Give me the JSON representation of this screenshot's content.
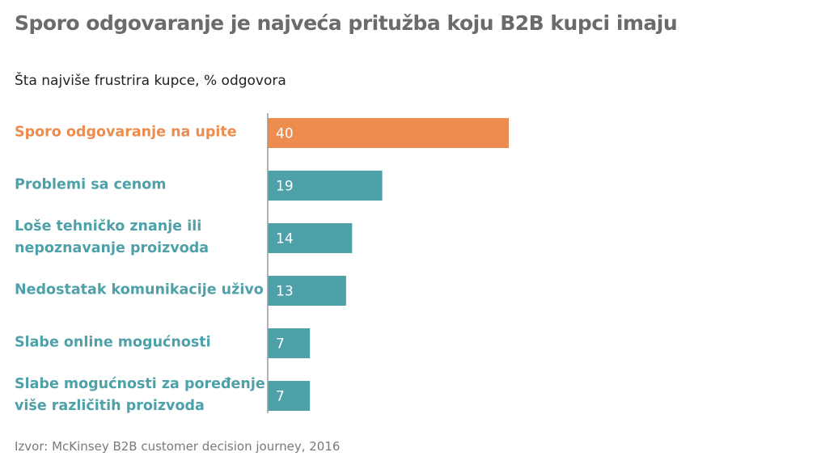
{
  "chart_data": {
    "type": "bar",
    "orientation": "horizontal",
    "title": "Sporo odgovaranje je najveća pritužba koju B2B kupci imaju",
    "subtitle": "Šta najviše frustrira kupce, % odgovora",
    "categories": [
      [
        "Sporo odgovaranje na upite"
      ],
      [
        "Problemi sa cenom"
      ],
      [
        "Loše tehničko znanje ili",
        "nepoznavanje proizvoda"
      ],
      [
        "Nedostatak komunikacije uživo"
      ],
      [
        "Slabe online mogućnosti"
      ],
      [
        "Slabe mogućnosti za poređenje",
        "više različitih proizvoda"
      ]
    ],
    "values": [
      40,
      19,
      14,
      13,
      7,
      7
    ],
    "highlight_index": 0,
    "colors": {
      "highlight": "#ec8c4e",
      "default": "#4ea1a9",
      "axis": "#9a9a9a"
    },
    "grid": false,
    "legend": "none",
    "source": "Izvor: McKinsey B2B customer decision journey, 2016"
  }
}
